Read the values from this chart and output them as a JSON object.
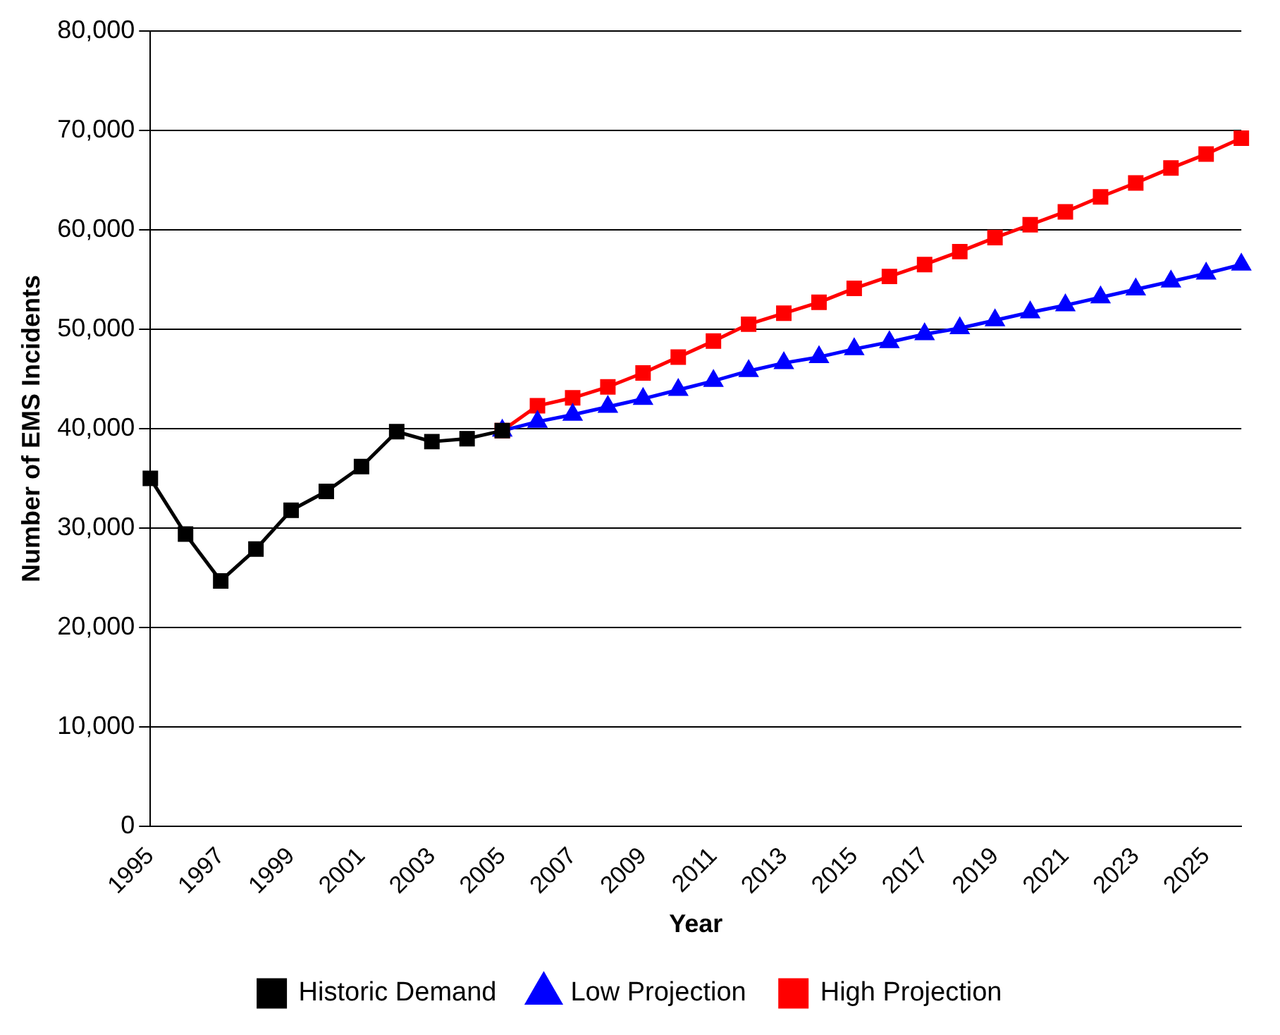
{
  "chart_data": {
    "type": "line",
    "xlabel": "Year",
    "ylabel": "Number of EMS Incidents",
    "categories": [
      "1995",
      null,
      "1997",
      null,
      "1999",
      null,
      "2001",
      null,
      "2003",
      null,
      "2005",
      null,
      "2007",
      null,
      "2009",
      null,
      "2011",
      null,
      "2013",
      null,
      "2015",
      null,
      "2017",
      null,
      "2019",
      null,
      "2021",
      null,
      "2023",
      null,
      "2025",
      null
    ],
    "series": [
      {
        "name": "Historic Demand",
        "color": "#000000",
        "marker": "square",
        "values": [
          35000,
          29400,
          24700,
          27900,
          31800,
          33700,
          36200,
          39700,
          38700,
          39000,
          39800,
          null,
          null,
          null,
          null,
          null,
          null,
          null,
          null,
          null,
          null,
          null,
          null,
          null,
          null,
          null,
          null,
          null,
          null,
          null,
          null,
          null
        ]
      },
      {
        "name": "Low Projection",
        "color": "#0000ff",
        "marker": "triangle",
        "values": [
          null,
          null,
          null,
          null,
          null,
          null,
          null,
          null,
          null,
          null,
          39800,
          40700,
          41400,
          42200,
          43000,
          43900,
          44800,
          45800,
          46600,
          47200,
          48000,
          48700,
          49500,
          50100,
          50900,
          51700,
          52400,
          53200,
          54000,
          54800,
          55600,
          56500
        ]
      },
      {
        "name": "High Projection",
        "color": "#ff0000",
        "marker": "square",
        "values": [
          null,
          null,
          null,
          null,
          null,
          null,
          null,
          null,
          null,
          null,
          39800,
          42300,
          43100,
          44200,
          45600,
          47200,
          48800,
          50500,
          51600,
          52700,
          54100,
          55300,
          56500,
          57800,
          59200,
          60500,
          61800,
          63300,
          64700,
          66200,
          67600,
          69200
        ]
      }
    ],
    "ylim": [
      0,
      80000
    ],
    "yticks": [
      0,
      {
        "value": 10000,
        "label": "10,000"
      },
      {
        "value": 20000,
        "label": "20,000"
      },
      {
        "value": 30000,
        "label": "30,000"
      },
      {
        "value": 40000,
        "label": "40,000"
      },
      {
        "value": 50000,
        "label": "50,000"
      },
      {
        "value": 60000,
        "label": "60,000"
      },
      {
        "value": 70000,
        "label": "70,000"
      },
      {
        "value": 80000,
        "label": "80,000"
      }
    ],
    "grid": "y",
    "legend": "bottom",
    "line_style": "solid"
  }
}
